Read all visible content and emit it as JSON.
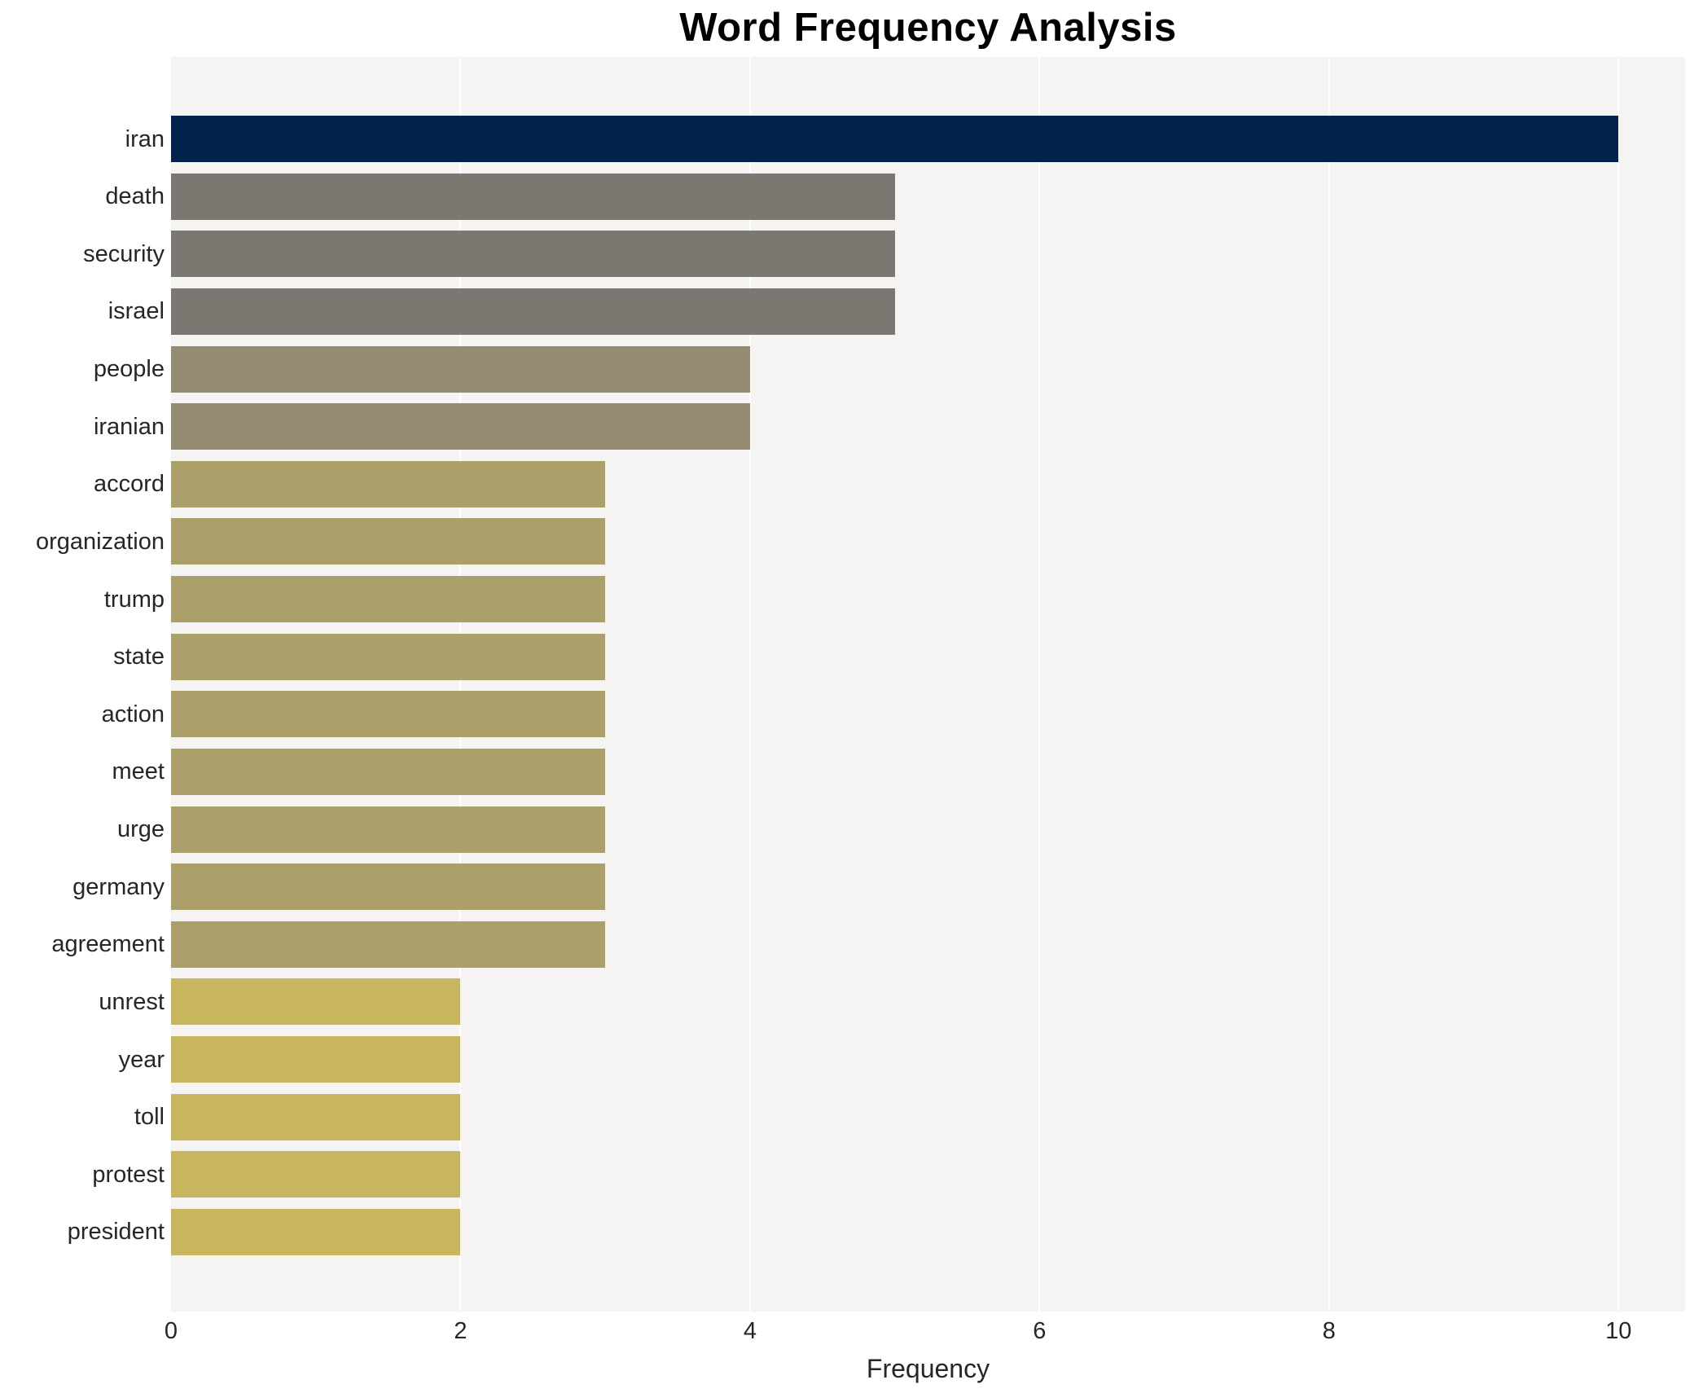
{
  "chart_data": {
    "type": "bar",
    "orientation": "horizontal",
    "title": "Word Frequency Analysis",
    "xlabel": "Frequency",
    "ylabel": "",
    "xlim": [
      0,
      10.46
    ],
    "xticks": [
      0,
      2,
      4,
      6,
      8,
      10
    ],
    "grid": "vertical-white-gridlines",
    "legend": "none",
    "plot_background": "#f5f4f2",
    "page_background": "#ffffff",
    "categories": [
      "iran",
      "death",
      "security",
      "israel",
      "people",
      "iranian",
      "accord",
      "organization",
      "trump",
      "state",
      "action",
      "meet",
      "urge",
      "germany",
      "agreement",
      "unrest",
      "year",
      "toll",
      "protest",
      "president"
    ],
    "values": [
      10,
      5,
      5,
      5,
      4,
      4,
      3,
      3,
      3,
      3,
      3,
      3,
      3,
      3,
      3,
      2,
      2,
      2,
      2,
      2
    ],
    "bar_colors": [
      "#03234f",
      "#7b7872",
      "#7b7872",
      "#7b7872",
      "#948b71",
      "#948b71",
      "#ab9f6a",
      "#ab9f6a",
      "#ab9f6a",
      "#ab9f6a",
      "#ab9f6a",
      "#ab9f6a",
      "#ab9f6a",
      "#ab9f6a",
      "#ab9f6a",
      "#c8b65e",
      "#c8b65e",
      "#c8b65e",
      "#c8b65e",
      "#c8b65e"
    ],
    "color_groups": {
      "freq_10": "#03234f",
      "freq_5": "#7b7872",
      "freq_4": "#948b71",
      "freq_3": "#ab9f6a",
      "freq_2": "#c8b65e"
    }
  }
}
